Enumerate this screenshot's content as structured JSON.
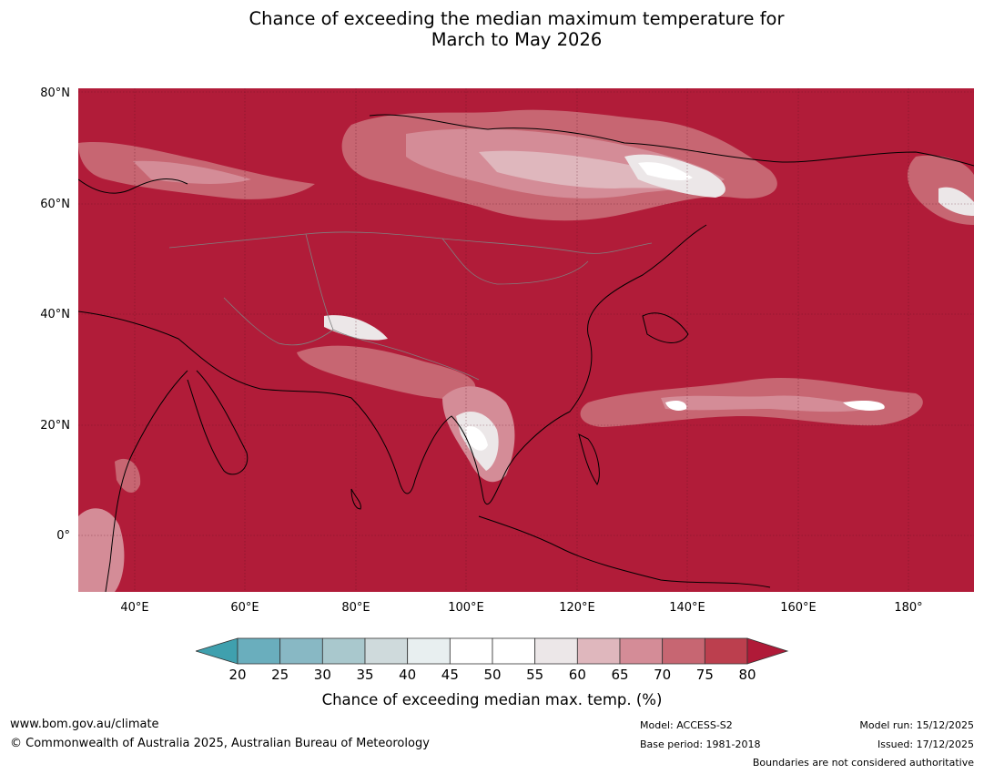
{
  "title": {
    "line1": "Chance of exceeding the median maximum temperature for",
    "line2": "March to May 2026"
  },
  "map": {
    "type": "forecast probability map (filled contours) with coastlines and country boundaries",
    "region": "Asia, Indian Ocean and western Pacific",
    "base_color": "#b11c39",
    "lat_labels": [
      "80°N",
      "60°N",
      "40°N",
      "20°N",
      "0°"
    ],
    "lon_labels": [
      "40°E",
      "60°E",
      "80°E",
      "100°E",
      "120°E",
      "140°E",
      "160°E",
      "180°"
    ]
  },
  "colorbar": {
    "ticks": [
      "20",
      "25",
      "30",
      "35",
      "40",
      "45",
      "50",
      "55",
      "60",
      "65",
      "70",
      "75",
      "80"
    ],
    "colors": [
      "#6aaebd",
      "#88b8c4",
      "#a9c8cd",
      "#cfdadc",
      "#e8eff0",
      "#ffffff",
      "#ffffff",
      "#ece7e8",
      "#dfb7bd",
      "#d48c97",
      "#c76672",
      "#bc3f4e"
    ],
    "under_color": "#3fa0ae",
    "over_color": "#b01a38",
    "label": "Chance of exceeding median max. temp. (%)"
  },
  "footer": {
    "website": "www.bom.gov.au/climate",
    "copyright": "© Commonwealth of Australia 2025, Australian Bureau of Meteorology",
    "model": "Model: ACCESS-S2",
    "base_period": "Base period: 1981-2018",
    "model_run": "Model run: 15/12/2025",
    "issued": "Issued: 17/12/2025",
    "disclaimer": "Boundaries are not considered authoritative"
  }
}
